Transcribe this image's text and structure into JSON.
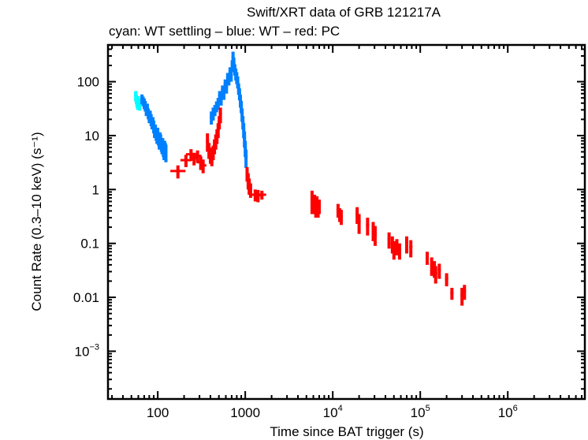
{
  "chart_data": {
    "type": "scatter",
    "title": "Swift/XRT data of GRB 121217A",
    "subtitle": "cyan: WT settling – blue: WT – red: PC",
    "xlabel": "Time since BAT trigger (s)",
    "ylabel": "Count Rate (0.3–10 keV) (s⁻¹)",
    "xscale": "log",
    "yscale": "log",
    "xlim": [
      27,
      7600000
    ],
    "ylim": [
      0.00013,
      480
    ],
    "grid": false,
    "xticks": [
      {
        "value": 100,
        "label": "100"
      },
      {
        "value": 1000,
        "label": "1000"
      },
      {
        "value": 10000,
        "label": "10⁴"
      },
      {
        "value": 100000,
        "label": "10⁵"
      },
      {
        "value": 1000000,
        "label": "10⁶"
      }
    ],
    "yticks": [
      {
        "value": 100,
        "label": "100"
      },
      {
        "value": 10,
        "label": "10"
      },
      {
        "value": 1,
        "label": "1"
      },
      {
        "value": 0.1,
        "label": "0.1"
      },
      {
        "value": 0.01,
        "label": "0.01"
      },
      {
        "value": 0.001,
        "label": "10⁻³"
      }
    ],
    "series": [
      {
        "name": "WT settling",
        "color": "#00ffff",
        "points": [
          [
            56,
            55,
            12
          ],
          [
            57,
            48,
            10
          ],
          [
            58,
            42,
            9
          ],
          [
            59,
            38,
            8
          ],
          [
            60,
            45,
            9
          ],
          [
            61,
            40,
            8
          ],
          [
            62,
            36,
            7
          ]
        ]
      },
      {
        "name": "WT",
        "color": "#0080ff",
        "points": [
          [
            66,
            48,
            10
          ],
          [
            68,
            44,
            9
          ],
          [
            70,
            40,
            9
          ],
          [
            72,
            36,
            8
          ],
          [
            74,
            30,
            7
          ],
          [
            76,
            32,
            7
          ],
          [
            78,
            26,
            6
          ],
          [
            80,
            22,
            5
          ],
          [
            82,
            24,
            5
          ],
          [
            84,
            20,
            5
          ],
          [
            86,
            17,
            4
          ],
          [
            88,
            18,
            4
          ],
          [
            90,
            15,
            4
          ],
          [
            92,
            12,
            3
          ],
          [
            94,
            13,
            3
          ],
          [
            96,
            11,
            3
          ],
          [
            98,
            10,
            3
          ],
          [
            100,
            11,
            3
          ],
          [
            102,
            9,
            2.5
          ],
          [
            104,
            8,
            2.5
          ],
          [
            106,
            9,
            2.5
          ],
          [
            108,
            8,
            2.5
          ],
          [
            110,
            7,
            2
          ],
          [
            112,
            6.5,
            2
          ],
          [
            114,
            7,
            2
          ],
          [
            116,
            6,
            2
          ],
          [
            118,
            5.5,
            2
          ],
          [
            120,
            6,
            2
          ],
          [
            122,
            5.5,
            1.8
          ],
          [
            124,
            5,
            1.8
          ],
          [
            410,
            22,
            6
          ],
          [
            430,
            26,
            7
          ],
          [
            450,
            30,
            7
          ],
          [
            470,
            35,
            8
          ],
          [
            490,
            40,
            10
          ],
          [
            510,
            55,
            12
          ],
          [
            530,
            48,
            12
          ],
          [
            550,
            70,
            15
          ],
          [
            570,
            60,
            14
          ],
          [
            590,
            90,
            20
          ],
          [
            610,
            80,
            20
          ],
          [
            630,
            120,
            25
          ],
          [
            650,
            110,
            25
          ],
          [
            670,
            150,
            35
          ],
          [
            690,
            130,
            30
          ],
          [
            710,
            200,
            50
          ],
          [
            725,
            280,
            80
          ],
          [
            740,
            220,
            60
          ],
          [
            760,
            170,
            40
          ],
          [
            780,
            140,
            35
          ],
          [
            800,
            120,
            30
          ],
          [
            820,
            100,
            25
          ],
          [
            840,
            75,
            18
          ],
          [
            860,
            60,
            15
          ],
          [
            880,
            45,
            12
          ],
          [
            900,
            35,
            9
          ],
          [
            920,
            25,
            7
          ],
          [
            940,
            18,
            5
          ],
          [
            960,
            13,
            4
          ],
          [
            980,
            9,
            3
          ],
          [
            1000,
            6,
            2
          ],
          [
            1020,
            4,
            1.5
          ]
        ]
      },
      {
        "name": "PC",
        "color": "#ff0000",
        "points": [
          [
            170,
            2.2,
            0.6,
            25
          ],
          [
            210,
            3.5,
            0.9,
            18
          ],
          [
            240,
            4.5,
            1.1,
            18
          ],
          [
            260,
            3.8,
            1.0,
            12
          ],
          [
            285,
            4.2,
            1.1,
            12
          ],
          [
            310,
            3.2,
            0.9,
            10
          ],
          [
            330,
            2.8,
            0.8,
            8
          ],
          [
            370,
            8,
            3,
            0
          ],
          [
            385,
            5.5,
            1.8,
            0
          ],
          [
            400,
            4.5,
            1.5,
            0
          ],
          [
            415,
            4,
            1.3,
            0
          ],
          [
            430,
            5,
            1.5,
            0
          ],
          [
            445,
            6.5,
            2,
            0
          ],
          [
            460,
            8,
            2.5,
            0
          ],
          [
            475,
            10,
            3,
            0
          ],
          [
            490,
            13,
            4,
            0
          ],
          [
            505,
            18,
            5,
            0
          ],
          [
            520,
            25,
            8,
            0
          ],
          [
            1050,
            2,
            0.6,
            0
          ],
          [
            1080,
            1.5,
            0.5,
            0
          ],
          [
            1110,
            1.2,
            0.4,
            0
          ],
          [
            1150,
            1.0,
            0.3,
            0
          ],
          [
            1300,
            0.8,
            0.2,
            70
          ],
          [
            1400,
            0.78,
            0.2,
            70
          ],
          [
            1550,
            0.8,
            0.15,
            80
          ],
          [
            5800,
            0.65,
            0.3,
            0
          ],
          [
            6000,
            0.55,
            0.2,
            0
          ],
          [
            6200,
            0.6,
            0.2,
            0
          ],
          [
            6400,
            0.5,
            0.2,
            0
          ],
          [
            6600,
            0.55,
            0.2,
            0
          ],
          [
            6800,
            0.45,
            0.15,
            0
          ],
          [
            7000,
            0.5,
            0.15,
            0
          ],
          [
            11500,
            0.42,
            0.12,
            0
          ],
          [
            12000,
            0.35,
            0.1,
            0
          ],
          [
            12500,
            0.32,
            0.1,
            0
          ],
          [
            19000,
            0.35,
            0.12,
            0
          ],
          [
            20000,
            0.25,
            0.1,
            0
          ],
          [
            25000,
            0.22,
            0.08,
            0
          ],
          [
            29000,
            0.18,
            0.07,
            0
          ],
          [
            30500,
            0.15,
            0.06,
            0
          ],
          [
            44000,
            0.12,
            0.04,
            0
          ],
          [
            48000,
            0.1,
            0.035,
            0
          ],
          [
            50000,
            0.08,
            0.03,
            0
          ],
          [
            54000,
            0.09,
            0.03,
            0
          ],
          [
            58000,
            0.075,
            0.025,
            0
          ],
          [
            70000,
            0.1,
            0.035,
            0
          ],
          [
            78000,
            0.085,
            0.03,
            0
          ],
          [
            120000,
            0.055,
            0.015,
            0
          ],
          [
            135000,
            0.04,
            0.015,
            0
          ],
          [
            145000,
            0.035,
            0.012,
            0
          ],
          [
            150000,
            0.028,
            0.01,
            0
          ],
          [
            165000,
            0.032,
            0.01,
            0
          ],
          [
            200000,
            0.022,
            0.006,
            0
          ],
          [
            230000,
            0.012,
            0.003,
            0
          ],
          [
            300000,
            0.011,
            0.004,
            0
          ],
          [
            320000,
            0.013,
            0.004,
            0
          ]
        ]
      }
    ]
  }
}
